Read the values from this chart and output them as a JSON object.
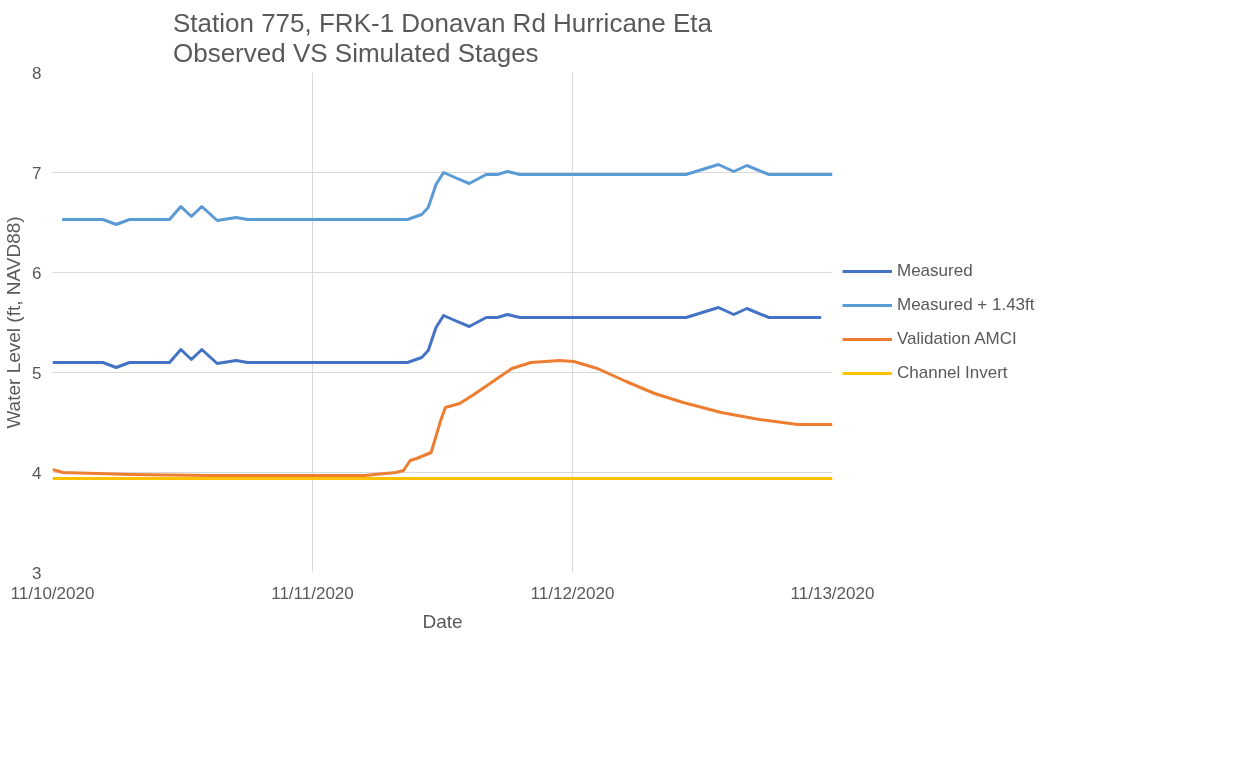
{
  "chart_data": {
    "type": "line",
    "title": "Station 775, FRK-1 Donavan Rd Hurricane Eta\nObserved VS Simulated Stages",
    "xlabel": "Date",
    "ylabel": "Water Level (ft, NAVD88)",
    "xlim": [
      "2020-11-10",
      "2020-11-13"
    ],
    "xticks": [
      {
        "value": "2020-11-10",
        "label": "11/10/2020"
      },
      {
        "value": "2020-11-11",
        "label": "11/11/2020"
      },
      {
        "value": "2020-11-12",
        "label": "11/12/2020"
      },
      {
        "value": "2020-11-13",
        "label": "11/13/2020"
      }
    ],
    "ylim": [
      3,
      8
    ],
    "yticks": [
      3,
      4,
      5,
      6,
      7,
      8
    ],
    "grid": true,
    "legend": "right",
    "line_style": "solid",
    "series": [
      {
        "name": "Measured",
        "color": "#4472c4",
        "x": [
          "2020-11-10T00:00",
          "2020-11-10T02:54",
          "2020-11-10T04:39",
          "2020-11-10T05:53",
          "2020-11-10T07:06",
          "2020-11-10T10:48",
          "2020-11-10T11:51",
          "2020-11-10T12:49",
          "2020-11-10T13:47",
          "2020-11-10T15:12",
          "2020-11-10T16:57",
          "2020-11-10T18:00",
          "2020-11-11T08:46",
          "2020-11-11T10:05",
          "2020-11-11T10:41",
          "2020-11-11T11:24",
          "2020-11-11T12:06",
          "2020-11-11T13:09",
          "2020-11-11T14:28",
          "2020-11-11T16:02",
          "2020-11-11T17:05",
          "2020-11-11T17:59",
          "2020-11-11T19:08",
          "2020-11-12T10:29",
          "2020-11-12T11:59",
          "2020-11-12T13:28",
          "2020-11-12T14:53",
          "2020-11-12T16:06",
          "2020-11-12T18:07",
          "2020-11-12T22:57"
        ],
        "values": [
          5.1,
          5.1,
          5.1,
          5.05,
          5.1,
          5.1,
          5.23,
          5.13,
          5.23,
          5.09,
          5.12,
          5.1,
          5.1,
          5.15,
          5.22,
          5.45,
          5.57,
          5.52,
          5.46,
          5.55,
          5.55,
          5.58,
          5.55,
          5.55,
          5.6,
          5.65,
          5.58,
          5.64,
          5.55,
          5.55
        ]
      },
      {
        "name": "Measured + 1.43ft",
        "color": "#5b9bd5",
        "x": [
          "2020-11-10T00:53",
          "2020-11-10T02:54",
          "2020-11-10T04:39",
          "2020-11-10T05:53",
          "2020-11-10T07:06",
          "2020-11-10T10:48",
          "2020-11-10T11:51",
          "2020-11-10T12:49",
          "2020-11-10T13:47",
          "2020-11-10T15:12",
          "2020-11-10T16:57",
          "2020-11-10T18:00",
          "2020-11-11T08:46",
          "2020-11-11T10:05",
          "2020-11-11T10:41",
          "2020-11-11T11:24",
          "2020-11-11T12:06",
          "2020-11-11T13:09",
          "2020-11-11T14:28",
          "2020-11-11T16:02",
          "2020-11-11T17:05",
          "2020-11-11T17:59",
          "2020-11-11T19:08",
          "2020-11-12T10:29",
          "2020-11-12T11:59",
          "2020-11-12T13:28",
          "2020-11-12T14:53",
          "2020-11-12T16:06",
          "2020-11-12T18:07",
          "2020-11-13T00:00"
        ],
        "values": [
          6.53,
          6.53,
          6.53,
          6.48,
          6.53,
          6.53,
          6.66,
          6.56,
          6.66,
          6.52,
          6.55,
          6.53,
          6.53,
          6.58,
          6.65,
          6.88,
          7.0,
          6.95,
          6.89,
          6.98,
          6.98,
          7.01,
          6.98,
          6.98,
          7.03,
          7.08,
          7.01,
          7.07,
          6.98,
          6.98
        ]
      },
      {
        "name": "Validation AMCI",
        "color": "#ed7d31",
        "x": [
          "2020-11-10T00:00",
          "2020-11-10T00:58",
          "2020-11-10T07:12",
          "2020-11-10T14:24",
          "2020-11-11T00:00",
          "2020-11-11T04:48",
          "2020-11-11T07:41",
          "2020-11-11T08:24",
          "2020-11-11T09:01",
          "2020-11-11T09:37",
          "2020-11-11T10:57",
          "2020-11-11T11:50",
          "2020-11-11T12:16",
          "2020-11-11T13:35",
          "2020-11-11T14:54",
          "2020-11-11T16:39",
          "2020-11-11T18:24",
          "2020-11-11T20:10",
          "2020-11-11T22:48",
          "2020-11-12T00:07",
          "2020-11-12T02:18",
          "2020-11-12T04:57",
          "2020-11-12T07:35",
          "2020-11-12T10:13",
          "2020-11-12T13:44",
          "2020-11-12T17:15",
          "2020-11-12T20:46",
          "2020-11-13T00:00"
        ],
        "values": [
          4.03,
          4.0,
          3.98,
          3.97,
          3.97,
          3.97,
          4.0,
          4.02,
          4.12,
          4.14,
          4.2,
          4.52,
          4.65,
          4.69,
          4.78,
          4.91,
          5.04,
          5.1,
          5.12,
          5.11,
          5.04,
          4.91,
          4.79,
          4.7,
          4.6,
          4.53,
          4.48,
          4.48
        ]
      },
      {
        "name": "Channel Invert",
        "color": "#ffc000",
        "x": [
          "2020-11-10T00:00",
          "2020-11-13T00:00"
        ],
        "values": [
          3.94,
          3.94
        ]
      }
    ]
  }
}
